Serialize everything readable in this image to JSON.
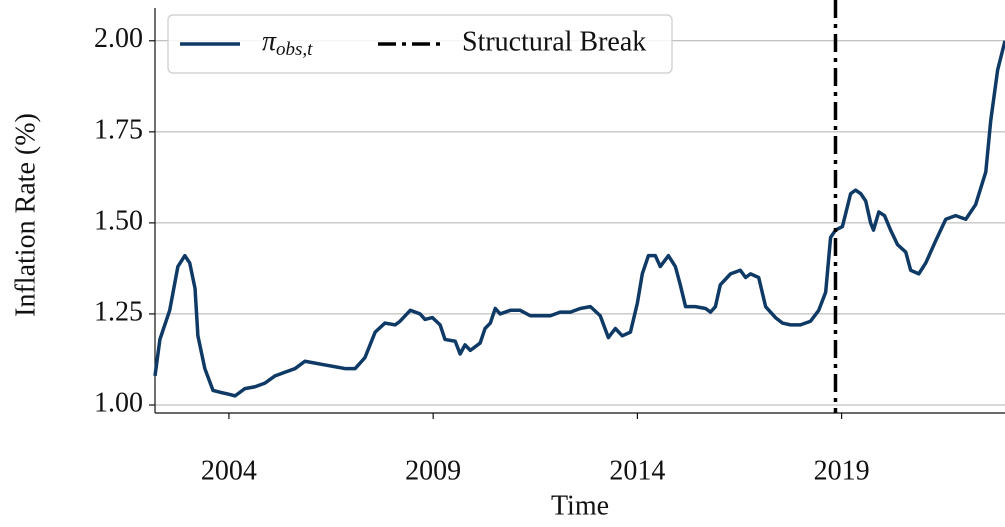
{
  "chart_data": {
    "type": "line",
    "xlabel": "Time",
    "ylabel": "Inflation Rate (%)",
    "x": [
      2002.19,
      2002.31,
      2002.55,
      2002.75,
      2002.92,
      2003.04,
      2003.17,
      2003.24,
      2003.41,
      2003.61,
      2003.78,
      2003.98,
      2004.15,
      2004.39,
      2004.64,
      2004.88,
      2005.13,
      2005.37,
      2005.62,
      2005.86,
      2006.11,
      2006.35,
      2006.6,
      2006.84,
      2007.09,
      2007.33,
      2007.58,
      2007.82,
      2008.07,
      2008.19,
      2008.44,
      2008.68,
      2008.8,
      2008.98,
      2009.17,
      2009.29,
      2009.54,
      2009.66,
      2009.78,
      2009.91,
      2010.15,
      2010.27,
      2010.4,
      2010.52,
      2010.64,
      2010.89,
      2011.13,
      2011.38,
      2011.62,
      2011.87,
      2012.11,
      2012.36,
      2012.6,
      2012.85,
      2013.09,
      2013.29,
      2013.46,
      2013.63,
      2013.83,
      2014.0,
      2014.12,
      2014.27,
      2014.44,
      2014.56,
      2014.76,
      2014.93,
      2015.05,
      2015.18,
      2015.42,
      2015.67,
      2015.79,
      2015.91,
      2016.03,
      2016.28,
      2016.52,
      2016.65,
      2016.77,
      2016.97,
      2017.14,
      2017.38,
      2017.55,
      2017.75,
      2017.99,
      2018.24,
      2018.44,
      2018.61,
      2018.73,
      2018.85,
      2019.02,
      2019.22,
      2019.34,
      2019.47,
      2019.59,
      2019.71,
      2019.78,
      2019.91,
      2020.05,
      2020.2,
      2020.37,
      2020.57,
      2020.69,
      2020.89,
      2021.06,
      2021.3,
      2021.55,
      2021.79,
      2022.04,
      2022.28,
      2022.53,
      2022.65,
      2022.82,
      2023.0
    ],
    "series": [
      {
        "name": "π",
        "name_subscript": "obs,t",
        "color": "#0f3a66",
        "values": [
          1.08,
          1.18,
          1.26,
          1.38,
          1.41,
          1.39,
          1.32,
          1.19,
          1.1,
          1.04,
          1.035,
          1.03,
          1.025,
          1.045,
          1.05,
          1.06,
          1.08,
          1.09,
          1.1,
          1.12,
          1.115,
          1.11,
          1.105,
          1.1,
          1.1,
          1.13,
          1.2,
          1.225,
          1.22,
          1.23,
          1.26,
          1.25,
          1.235,
          1.24,
          1.22,
          1.18,
          1.175,
          1.14,
          1.165,
          1.15,
          1.17,
          1.21,
          1.225,
          1.265,
          1.25,
          1.26,
          1.26,
          1.245,
          1.245,
          1.245,
          1.255,
          1.255,
          1.265,
          1.27,
          1.245,
          1.185,
          1.21,
          1.19,
          1.2,
          1.28,
          1.36,
          1.41,
          1.41,
          1.38,
          1.41,
          1.38,
          1.33,
          1.27,
          1.27,
          1.265,
          1.255,
          1.27,
          1.33,
          1.36,
          1.37,
          1.35,
          1.36,
          1.35,
          1.27,
          1.24,
          1.225,
          1.22,
          1.22,
          1.23,
          1.26,
          1.31,
          1.46,
          1.48,
          1.49,
          1.58,
          1.59,
          1.58,
          1.56,
          1.5,
          1.48,
          1.53,
          1.52,
          1.48,
          1.44,
          1.42,
          1.37,
          1.36,
          1.39,
          1.45,
          1.51,
          1.52,
          1.51,
          1.55,
          1.64,
          1.78,
          1.92,
          2.0
        ]
      }
    ],
    "structural_break": {
      "name": "Structural Break",
      "x": 2018.85,
      "color": "#000000"
    },
    "xlim": [
      2002.19,
      2023.0
    ],
    "xticks": [
      2004,
      2009,
      2014,
      2019
    ],
    "ylim": [
      0.978,
      2.09
    ],
    "yticks": [
      {
        "value": 1,
        "label": "1.00"
      },
      1.25,
      {
        "value": 1.5,
        "label": "1.50"
      },
      1.75,
      {
        "value": 2,
        "label": "2.00"
      }
    ],
    "grid": true,
    "legend": "upper left"
  }
}
